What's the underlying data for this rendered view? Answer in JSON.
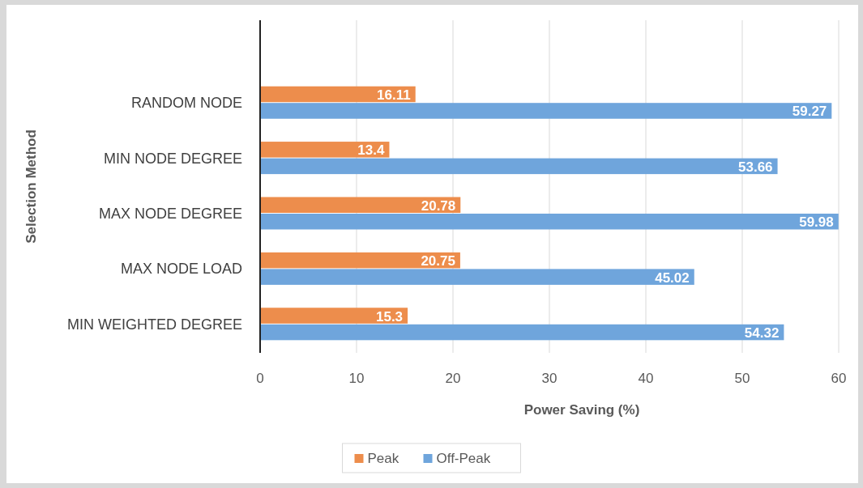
{
  "chart_data": {
    "type": "bar",
    "orientation": "horizontal",
    "xlabel": "Power Saving (%)",
    "ylabel": "Selection Method",
    "categories": [
      "RANDOM NODE",
      "MIN NODE DEGREE",
      "MAX NODE DEGREE",
      "MAX NODE LOAD",
      "MIN WEIGHTED DEGREE"
    ],
    "series": [
      {
        "name": "Peak",
        "color": "#ed8d4c",
        "values": [
          16.11,
          13.4,
          20.78,
          20.75,
          15.3
        ]
      },
      {
        "name": "Off-Peak",
        "color": "#6fa5dc",
        "values": [
          59.27,
          53.66,
          59.98,
          45.02,
          54.32
        ]
      }
    ],
    "xlim": [
      0,
      60
    ],
    "xticks": [
      0,
      10,
      20,
      30,
      40,
      50,
      60
    ],
    "grid": "x",
    "legend": "bottom",
    "data_labels": true
  }
}
